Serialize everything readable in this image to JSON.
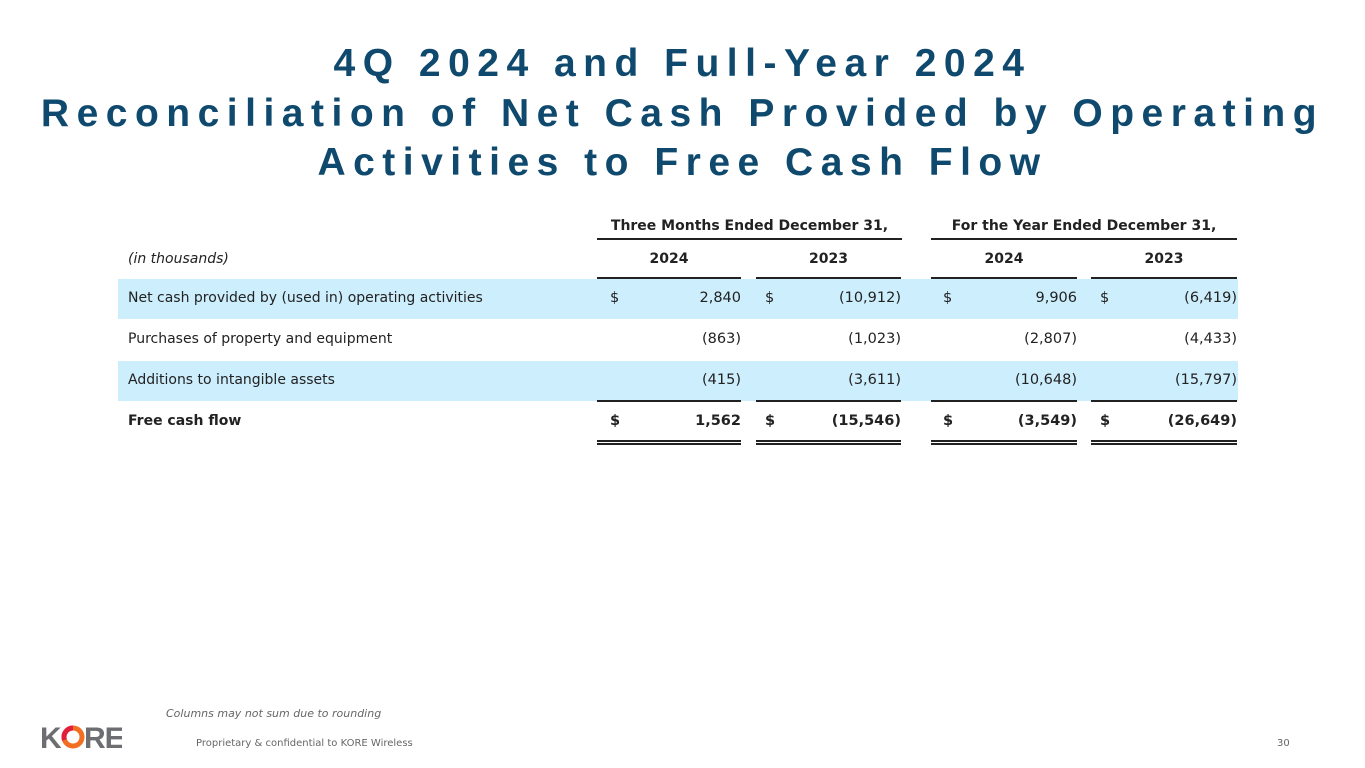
{
  "title": {
    "line1": "4Q 2024 and Full-Year 2024",
    "line2": "Reconciliation of Net Cash Provided by Operating",
    "line3": "Activities to Free Cash Flow"
  },
  "table": {
    "units_label": "(in thousands)",
    "groups": [
      "Three Months Ended December 31,",
      "For the Year Ended December 31,"
    ],
    "years": [
      "2024",
      "2023",
      "2024",
      "2023"
    ],
    "rows": [
      {
        "label": "Net cash provided by (used in) operating activities",
        "dollar": [
          "$",
          "$",
          "$",
          "$"
        ],
        "values": [
          "2,840",
          "(10,912)",
          "9,906",
          "(6,419)"
        ],
        "shaded": true,
        "bold": false
      },
      {
        "label": "Purchases of property and equipment",
        "dollar": [
          "",
          "",
          "",
          ""
        ],
        "values": [
          "(863)",
          "(1,023)",
          "(2,807)",
          "(4,433)"
        ],
        "shaded": false,
        "bold": false
      },
      {
        "label": "Additions to intangible assets",
        "dollar": [
          "",
          "",
          "",
          ""
        ],
        "values": [
          "(415)",
          "(3,611)",
          "(10,648)",
          "(15,797)"
        ],
        "shaded": true,
        "bold": false
      },
      {
        "label": "Free cash flow",
        "dollar": [
          "$",
          "$",
          "$",
          "$"
        ],
        "values": [
          "1,562",
          "(15,546)",
          "(3,549)",
          "(26,649)"
        ],
        "shaded": false,
        "bold": true
      }
    ]
  },
  "footer": {
    "note": "Columns may not sum due to rounding",
    "confidential": "Proprietary & confidential to KORE Wireless",
    "page_number": "30",
    "logo_text": "KORE"
  },
  "colors": {
    "title": "#0f4a6e",
    "band": "#cdeefd",
    "logo_gray": "#6d6e71",
    "logo_orange": "#f26f21",
    "logo_red": "#e31e3c"
  }
}
